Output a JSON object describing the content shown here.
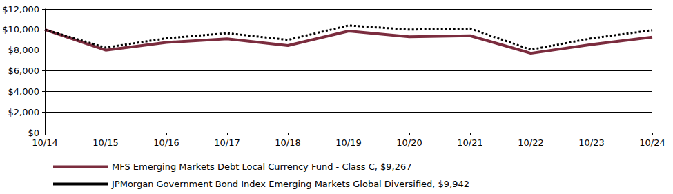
{
  "chart_data": {
    "type": "line",
    "categories": [
      "10/14",
      "10/15",
      "10/16",
      "10/17",
      "10/18",
      "10/19",
      "10/20",
      "10/21",
      "10/22",
      "10/23",
      "10/24"
    ],
    "series": [
      {
        "name": "MFS Emerging Markets Debt Local Currency Fund - Class C, $9,267",
        "color": "#7b2c3e",
        "line_style": "solid",
        "values": [
          10000,
          8000,
          8750,
          9100,
          8450,
          9850,
          9300,
          9400,
          7700,
          8550,
          9267
        ]
      },
      {
        "name": "JPMorgan Government Bond Index Emerging Markets Global Diversified, $9,942",
        "color": "#000000",
        "line_style": "dotted",
        "values": [
          10000,
          8250,
          9150,
          9650,
          9000,
          10400,
          10000,
          10100,
          8050,
          9150,
          9942
        ]
      }
    ],
    "ylim": [
      0,
      12000
    ],
    "yticks": [
      {
        "value": 0,
        "label": "$0"
      },
      {
        "value": 2000,
        "label": "$2,000"
      },
      {
        "value": 4000,
        "label": "$4,000"
      },
      {
        "value": 6000,
        "label": "$6,000"
      },
      {
        "value": 8000,
        "label": "$8,000"
      },
      {
        "value": 10000,
        "label": "$10,000"
      },
      {
        "value": 12000,
        "label": "$12,000"
      }
    ],
    "grid": true,
    "legend": "bottom"
  }
}
